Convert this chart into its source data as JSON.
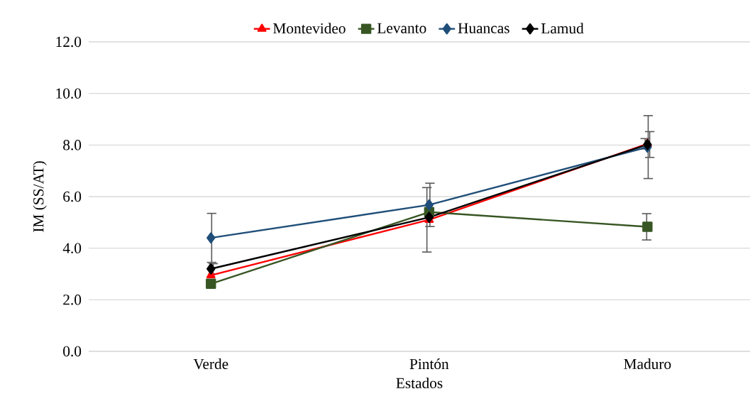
{
  "chart_data": {
    "type": "line",
    "xlabel": "Estados",
    "ylabel": "IM (SS/AT)",
    "categories": [
      "Verde",
      "Pintón",
      "Maduro"
    ],
    "series": [
      {
        "name": "Montevideo",
        "color": "#ff0000",
        "marker": "triangle",
        "values": [
          2.95,
          5.1,
          8.05
        ],
        "errors": [
          null,
          1.25,
          0.2
        ]
      },
      {
        "name": "Levanto",
        "color": "#375623",
        "marker": "square",
        "values": [
          2.62,
          5.4,
          4.83
        ],
        "errors": [
          null,
          null,
          0.51
        ]
      },
      {
        "name": "Huancas",
        "color": "#1f4e79",
        "marker": "diamond",
        "values": [
          4.4,
          5.68,
          7.92
        ],
        "errors": [
          0.95,
          0.84,
          1.22
        ]
      },
      {
        "name": "Lamud",
        "color": "#000000",
        "marker": "diamond",
        "values": [
          3.2,
          5.2,
          8.02
        ],
        "errors": [
          0.2,
          null,
          0.5
        ]
      }
    ],
    "ylim": [
      0,
      12
    ],
    "yticks": [
      {
        "value": 0,
        "label": "0.0"
      },
      {
        "value": 2,
        "label": "2.0"
      },
      {
        "value": 4,
        "label": "4.0"
      },
      {
        "value": 6,
        "label": "6.0"
      },
      {
        "value": 8,
        "label": "8.0"
      },
      {
        "value": 10,
        "label": "10.0"
      },
      {
        "value": 12,
        "label": "12.0"
      }
    ],
    "grid": "y",
    "legend": "top",
    "line_style": "solid"
  }
}
